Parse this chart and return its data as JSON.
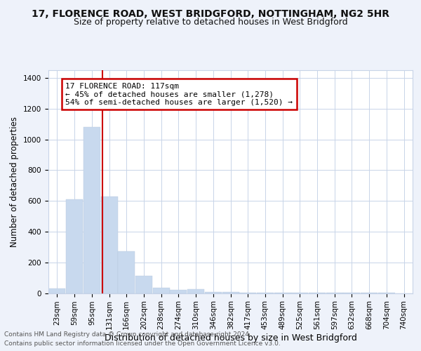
{
  "title_line1": "17, FLORENCE ROAD, WEST BRIDGFORD, NOTTINGHAM, NG2 5HR",
  "title_line2": "Size of property relative to detached houses in West Bridgford",
  "xlabel": "Distribution of detached houses by size in West Bridgford",
  "ylabel": "Number of detached properties",
  "footnote1": "Contains HM Land Registry data © Crown copyright and database right 2024.",
  "footnote2": "Contains public sector information licensed under the Open Government Licence v3.0.",
  "annotation_title": "17 FLORENCE ROAD: 117sqm",
  "annotation_line1": "← 45% of detached houses are smaller (1,278)",
  "annotation_line2": "54% of semi-detached houses are larger (1,520) →",
  "bar_color": "#c8d9ee",
  "bar_edge_color": "#b8cade",
  "vline_color": "#cc0000",
  "vline_x": 117,
  "annotation_box_edge_color": "#cc0000",
  "annotation_box_face_color": "#ffffff",
  "categories": [
    "23sqm",
    "59sqm",
    "95sqm",
    "131sqm",
    "166sqm",
    "202sqm",
    "238sqm",
    "274sqm",
    "310sqm",
    "346sqm",
    "382sqm",
    "417sqm",
    "453sqm",
    "489sqm",
    "525sqm",
    "561sqm",
    "597sqm",
    "632sqm",
    "668sqm",
    "704sqm",
    "740sqm"
  ],
  "bin_centers": [
    23,
    59,
    95,
    131,
    166,
    202,
    238,
    274,
    310,
    346,
    382,
    417,
    453,
    489,
    525,
    561,
    597,
    632,
    668,
    704,
    740
  ],
  "bin_width": 36,
  "bar_heights": [
    30,
    610,
    1080,
    630,
    270,
    110,
    35,
    20,
    25,
    5,
    5,
    3,
    3,
    2,
    2,
    1,
    1,
    1,
    1,
    1,
    0
  ],
  "ylim": [
    0,
    1450
  ],
  "yticks": [
    0,
    200,
    400,
    600,
    800,
    1000,
    1200,
    1400
  ],
  "xlim_left": 5,
  "xlim_right": 758,
  "background_color": "#eef2fa",
  "plot_bg_color": "#ffffff",
  "grid_color": "#c8d4e8",
  "title1_fontsize": 10,
  "title2_fontsize": 9,
  "xlabel_fontsize": 9,
  "ylabel_fontsize": 8.5,
  "tick_fontsize": 7.5,
  "annotation_fontsize": 8,
  "footnote_fontsize": 6.5
}
